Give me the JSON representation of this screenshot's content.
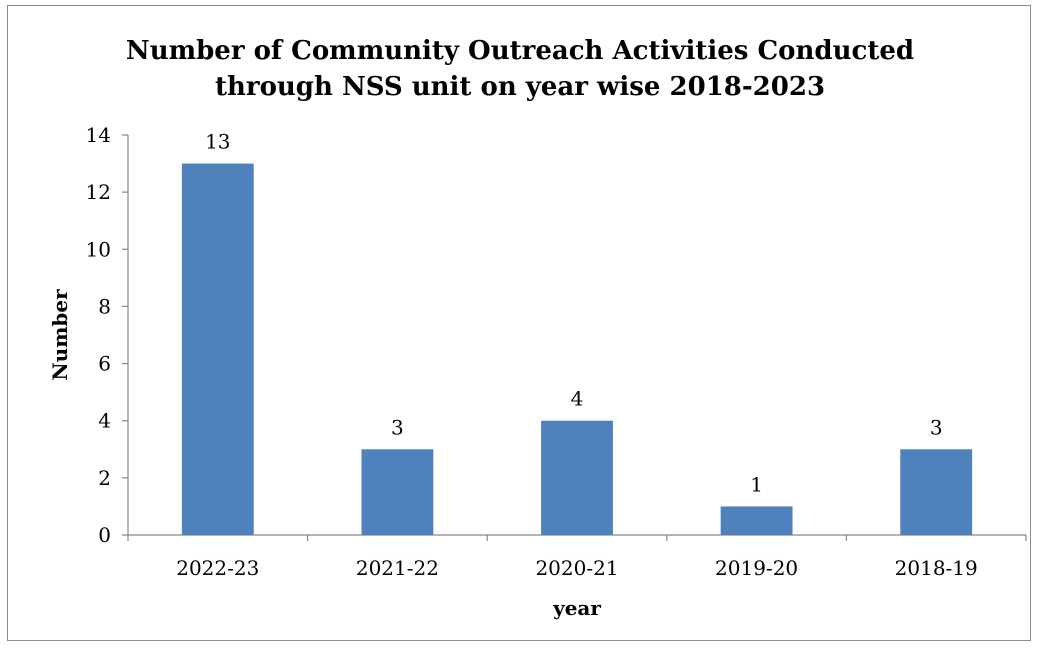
{
  "chart_data": {
    "type": "bar",
    "title_lines": [
      "Number of Community Outreach Activities Conducted",
      "through NSS unit on year wise 2018-2023"
    ],
    "categories": [
      "2022-23",
      "2021-22",
      "2020-21",
      "2019-20",
      "2018-19"
    ],
    "values": [
      13,
      3,
      4,
      1,
      3
    ],
    "data_labels": [
      "13",
      "3",
      "4",
      "1",
      "3"
    ],
    "xlabel": "year",
    "ylabel": "Number",
    "ylim": [
      0,
      14
    ],
    "yticks": [
      0,
      2,
      4,
      6,
      8,
      10,
      12,
      14
    ],
    "grid": false,
    "legend": "none",
    "bar_color": "#4f81bd"
  }
}
